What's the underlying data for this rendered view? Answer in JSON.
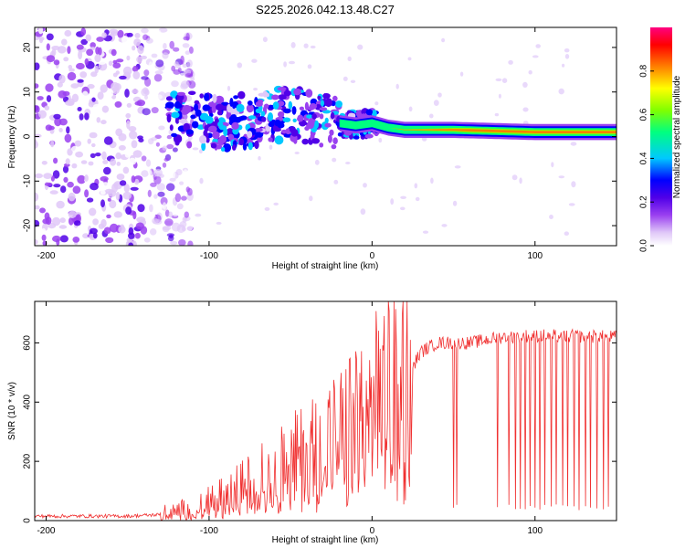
{
  "figure": {
    "title": "S225.2026.042.13.48.C27"
  },
  "chart_data": [
    {
      "type": "heatmap",
      "title": "S225.2026.042.13.48.C27",
      "xlabel": "Height of straight line (km)",
      "ylabel": "Frequency (Hz)",
      "xlim": [
        -207,
        150
      ],
      "ylim": [
        -24.5,
        24.5
      ],
      "xticks": [
        -200,
        -100,
        0,
        100
      ],
      "xtick_labels": [
        "-200",
        "-100",
        "0",
        "100"
      ],
      "yticks": [
        -20,
        -10,
        0,
        10,
        20
      ],
      "ytick_labels": [
        "-20",
        "-10",
        "0",
        "10",
        "20"
      ],
      "colorbar": {
        "label": "Normalized spectral amplitude",
        "range": [
          0,
          1
        ],
        "ticks": [
          0.0,
          0.2,
          0.4,
          0.6,
          0.8
        ],
        "tick_labels": [
          "0.0",
          "0.2",
          "0.4",
          "0.6",
          "0.8"
        ],
        "colormap": [
          "#ffffff",
          "#e0c8f8",
          "#9a40f0",
          "#5000e8",
          "#0000ff",
          "#00c8ff",
          "#00ff80",
          "#80ff00",
          "#ffff00",
          "#ff8000",
          "#ff0000",
          "#ff0080"
        ]
      },
      "ridge": [
        {
          "x": -120,
          "f": 4.5
        },
        {
          "x": -110,
          "f": 4.0
        },
        {
          "x": -100,
          "f": 3.5
        },
        {
          "x": -90,
          "f": 3.0
        },
        {
          "x": -80,
          "f": 3.5
        },
        {
          "x": -70,
          "f": 4.0
        },
        {
          "x": -60,
          "f": 4.5
        },
        {
          "x": -50,
          "f": 5.0
        },
        {
          "x": -40,
          "f": 4.5
        },
        {
          "x": -30,
          "f": 4.0
        },
        {
          "x": -20,
          "f": 3.0
        },
        {
          "x": -10,
          "f": 2.5
        },
        {
          "x": 0,
          "f": 3.0
        },
        {
          "x": 10,
          "f": 2.0
        },
        {
          "x": 20,
          "f": 1.5
        },
        {
          "x": 50,
          "f": 1.5
        },
        {
          "x": 100,
          "f": 1.0
        },
        {
          "x": 150,
          "f": 1.0
        }
      ],
      "noise_region": {
        "x_range": [
          -207,
          -110
        ],
        "f_range": [
          -24.5,
          24.5
        ]
      }
    },
    {
      "type": "line",
      "xlabel": "Height of straight line (km)",
      "ylabel": "SNR (10 * v/v)",
      "xlim": [
        -207,
        150
      ],
      "ylim": [
        0,
        740
      ],
      "xticks": [
        -200,
        -100,
        0,
        100
      ],
      "xtick_labels": [
        "-200",
        "-100",
        "0",
        "100"
      ],
      "yticks": [
        0,
        200,
        400,
        600
      ],
      "ytick_labels": [
        "0",
        "200",
        "400",
        "600"
      ],
      "series": [
        {
          "name": "SNR",
          "color": "#f03030",
          "trend": [
            {
              "x": -207,
              "y": 15
            },
            {
              "x": -150,
              "y": 15
            },
            {
              "x": -130,
              "y": 20
            },
            {
              "x": -110,
              "y": 40
            },
            {
              "x": -90,
              "y": 80
            },
            {
              "x": -70,
              "y": 140
            },
            {
              "x": -50,
              "y": 200
            },
            {
              "x": -30,
              "y": 260
            },
            {
              "x": -10,
              "y": 330
            },
            {
              "x": 0,
              "y": 400
            },
            {
              "x": 10,
              "y": 430
            },
            {
              "x": 20,
              "y": 470
            },
            {
              "x": 30,
              "y": 570
            },
            {
              "x": 40,
              "y": 600
            },
            {
              "x": 60,
              "y": 600
            },
            {
              "x": 80,
              "y": 620
            },
            {
              "x": 100,
              "y": 625
            },
            {
              "x": 150,
              "y": 620
            }
          ],
          "peak": {
            "x": 10,
            "y": 740
          },
          "dropouts": [
            50,
            52,
            77,
            84,
            88,
            91,
            94,
            97,
            100,
            103,
            106,
            110,
            113,
            117,
            120,
            124,
            127,
            131,
            134,
            138,
            142,
            145
          ]
        }
      ]
    }
  ]
}
